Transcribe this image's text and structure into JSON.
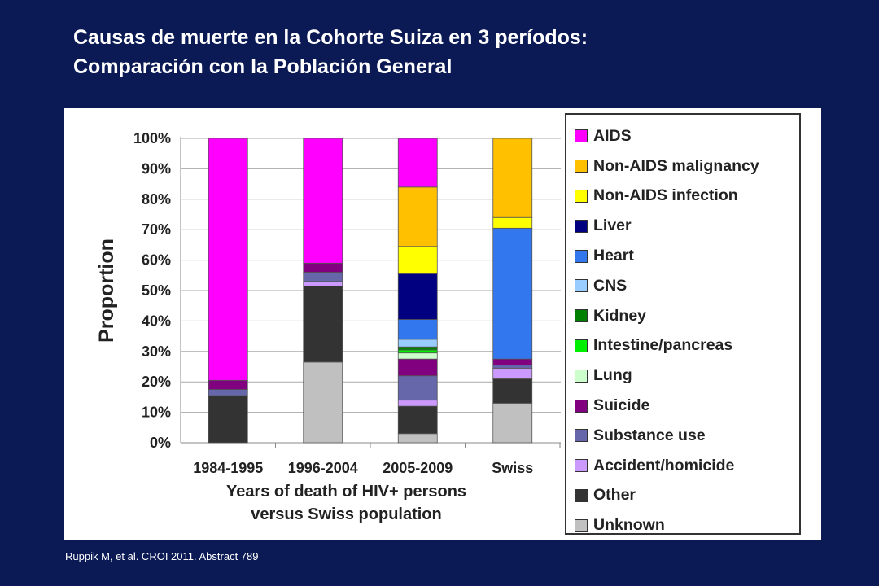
{
  "title": {
    "line1": "Causas de muerte en la Cohorte Suiza en 3 períodos:",
    "line2": "Comparación con la Población General"
  },
  "source": "Ruppik M, et al. CROI 2011. Abstract 789",
  "chart_data": {
    "type": "bar",
    "stacked": true,
    "ylabel": "Proportion",
    "xlabel": [
      "Years of death of HIV+ persons",
      "versus Swiss population"
    ],
    "ylim": [
      0,
      100
    ],
    "yticks": [
      "0%",
      "10%",
      "20%",
      "30%",
      "40%",
      "50%",
      "60%",
      "70%",
      "80%",
      "90%",
      "100%"
    ],
    "grid": "horizontal",
    "legend_position": "right",
    "categories": [
      "1984-1995",
      "1996-2004",
      "2005-2009",
      "Swiss"
    ],
    "series": [
      {
        "name": "Unknown",
        "color": "#c0c0c0",
        "values": [
          0,
          26.5,
          3,
          13
        ]
      },
      {
        "name": "Other",
        "color": "#333333",
        "values": [
          15.5,
          25,
          9,
          8
        ]
      },
      {
        "name": "Accident/homicide",
        "color": "#cc99ff",
        "values": [
          0,
          1.5,
          2,
          3.5
        ]
      },
      {
        "name": "Substance use",
        "color": "#6666aa",
        "values": [
          2,
          3,
          8,
          1
        ]
      },
      {
        "name": "Suicide",
        "color": "#800080",
        "values": [
          3,
          3,
          5.5,
          2
        ]
      },
      {
        "name": "Lung",
        "color": "#ccffcc",
        "values": [
          0,
          0,
          2,
          0
        ]
      },
      {
        "name": "Intestine/pancreas",
        "color": "#00ee00",
        "values": [
          0,
          0,
          1,
          0
        ]
      },
      {
        "name": "Kidney",
        "color": "#008000",
        "values": [
          0,
          0,
          1,
          0
        ]
      },
      {
        "name": "CNS",
        "color": "#99ccff",
        "values": [
          0,
          0,
          2.5,
          0
        ]
      },
      {
        "name": "Heart",
        "color": "#3377ee",
        "values": [
          0,
          0,
          6.5,
          43
        ]
      },
      {
        "name": "Liver",
        "color": "#000080",
        "values": [
          0,
          0,
          15,
          0
        ]
      },
      {
        "name": "Non-AIDS infection",
        "color": "#ffff00",
        "values": [
          0,
          0,
          9,
          3.5
        ]
      },
      {
        "name": "Non-AIDS malignancy",
        "color": "#ffc000",
        "values": [
          0,
          0,
          19.5,
          26
        ]
      },
      {
        "name": "AIDS",
        "color": "#ff00ff",
        "values": [
          79.5,
          41,
          16,
          0
        ]
      }
    ],
    "legend_order": [
      "AIDS",
      "Non-AIDS malignancy",
      "Non-AIDS infection",
      "Liver",
      "Heart",
      "CNS",
      "Kidney",
      "Intestine/pancreas",
      "Lung",
      "Suicide",
      "Substance use",
      "Accident/homicide",
      "Other",
      "Unknown"
    ]
  }
}
